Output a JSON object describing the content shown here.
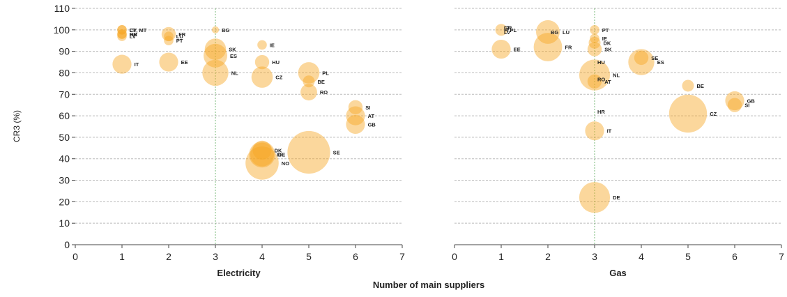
{
  "chart_data": [
    {
      "type": "scatter",
      "subtype": "bubble",
      "xlabel": "Electricity",
      "ylabel": "CR3 (%)",
      "xlim": [
        0,
        7
      ],
      "ylim": [
        0,
        110
      ],
      "xticks": [
        "0",
        "1",
        "2",
        "3",
        "4",
        "5",
        "6",
        "7"
      ],
      "yticks": [
        "0",
        "10",
        "20",
        "30",
        "40",
        "50",
        "60",
        "70",
        "80",
        "90",
        "100",
        "110"
      ],
      "reference_line_x": 3,
      "grid": "horizontal dashed",
      "points": [
        {
          "label": "CY, MT",
          "x": 1,
          "y": 100,
          "size": 2
        },
        {
          "label": "LT",
          "x": 1,
          "y": 100,
          "size": 2
        },
        {
          "label": "GR",
          "x": 1,
          "y": 98,
          "size": 2
        },
        {
          "label": "HR",
          "x": 1,
          "y": 98,
          "size": 2
        },
        {
          "label": "LV",
          "x": 1,
          "y": 97,
          "size": 2
        },
        {
          "label": "IT",
          "x": 1,
          "y": 84,
          "size": 4
        },
        {
          "label": "FR",
          "x": 2,
          "y": 98,
          "size": 3
        },
        {
          "label": "LU",
          "x": 2,
          "y": 97,
          "size": 2
        },
        {
          "label": "PT",
          "x": 2,
          "y": 95,
          "size": 2
        },
        {
          "label": "EE",
          "x": 2,
          "y": 85,
          "size": 4
        },
        {
          "label": "BG",
          "x": 3,
          "y": 100,
          "size": 1.5
        },
        {
          "label": "SK",
          "x": 3,
          "y": 91,
          "size": 4.5
        },
        {
          "label": "ES",
          "x": 3,
          "y": 88,
          "size": 5
        },
        {
          "label": "NL",
          "x": 3,
          "y": 80,
          "size": 5.5
        },
        {
          "label": "IE",
          "x": 4,
          "y": 93,
          "size": 2
        },
        {
          "label": "HU",
          "x": 4,
          "y": 85,
          "size": 3
        },
        {
          "label": "CZ",
          "x": 4,
          "y": 78,
          "size": 4.5
        },
        {
          "label": "DK",
          "x": 4,
          "y": 44,
          "size": 4
        },
        {
          "label": "FI",
          "x": 4,
          "y": 42,
          "size": 5
        },
        {
          "label": "DE",
          "x": 4,
          "y": 42,
          "size": 5.5
        },
        {
          "label": "NO",
          "x": 4,
          "y": 38,
          "size": 7
        },
        {
          "label": "PL",
          "x": 5,
          "y": 80,
          "size": 4.5
        },
        {
          "label": "BE",
          "x": 5,
          "y": 76,
          "size": 2.5
        },
        {
          "label": "RO",
          "x": 5,
          "y": 71,
          "size": 3.5
        },
        {
          "label": "SE",
          "x": 5,
          "y": 43,
          "size": 9
        },
        {
          "label": "SI",
          "x": 6,
          "y": 64,
          "size": 3
        },
        {
          "label": "AT",
          "x": 6,
          "y": 60,
          "size": 4
        },
        {
          "label": "GB",
          "x": 6,
          "y": 56,
          "size": 4
        }
      ]
    },
    {
      "type": "scatter",
      "subtype": "bubble",
      "xlabel": "Gas",
      "ylabel": "",
      "xlim": [
        0,
        7
      ],
      "ylim": [
        0,
        110
      ],
      "xticks": [
        "0",
        "1",
        "2",
        "3",
        "4",
        "5",
        "6",
        "7"
      ],
      "reference_line_x": 3,
      "grid": "horizontal dashed",
      "points": [
        {
          "label": "LT",
          "x": 1,
          "y": 101,
          "size": 0
        },
        {
          "label": "FI",
          "x": 1,
          "y": 100,
          "size": 0
        },
        {
          "label": "LV",
          "x": 1,
          "y": 99,
          "size": 0
        },
        {
          "label": "GR",
          "x": 1,
          "y": 101,
          "size": 0
        },
        {
          "label": "PL",
          "x": 1,
          "y": 100,
          "size": 2.5
        },
        {
          "label": "EE",
          "x": 1,
          "y": 91,
          "size": 4
        },
        {
          "label": "LU",
          "x": 2,
          "y": 99,
          "size": 5
        },
        {
          "label": "BG",
          "x": 2,
          "y": 99,
          "size": 0
        },
        {
          "label": "FR",
          "x": 2,
          "y": 92,
          "size": 6
        },
        {
          "label": "PT",
          "x": 3,
          "y": 100,
          "size": 2
        },
        {
          "label": "IE",
          "x": 3,
          "y": 96,
          "size": 2
        },
        {
          "label": "DK",
          "x": 3,
          "y": 94,
          "size": 2.5
        },
        {
          "label": "SK",
          "x": 3,
          "y": 91,
          "size": 3
        },
        {
          "label": "HU",
          "x": 3,
          "y": 85,
          "size": 0
        },
        {
          "label": "NL",
          "x": 3,
          "y": 79,
          "size": 6.5
        },
        {
          "label": "AT",
          "x": 3,
          "y": 76,
          "size": 3
        },
        {
          "label": "RO",
          "x": 3,
          "y": 77,
          "size": 0
        },
        {
          "label": "HR",
          "x": 3,
          "y": 62,
          "size": 0
        },
        {
          "label": "IT",
          "x": 3,
          "y": 53,
          "size": 4
        },
        {
          "label": "DE",
          "x": 3,
          "y": 22,
          "size": 6.5
        },
        {
          "label": "SE",
          "x": 4,
          "y": 87,
          "size": 3
        },
        {
          "label": "ES",
          "x": 4,
          "y": 85,
          "size": 5.5
        },
        {
          "label": "BE",
          "x": 5,
          "y": 74,
          "size": 2.5
        },
        {
          "label": "CZ",
          "x": 5,
          "y": 61,
          "size": 8
        },
        {
          "label": "GB",
          "x": 6,
          "y": 67,
          "size": 4
        },
        {
          "label": "SI",
          "x": 6,
          "y": 65,
          "size": 3
        }
      ]
    }
  ],
  "shared_xlabel": "Number of main suppliers",
  "colors": {
    "bubble": "#f6a623",
    "gridline": "#bbbbbb",
    "refline": "#7ab87a",
    "axis": "#444444"
  }
}
